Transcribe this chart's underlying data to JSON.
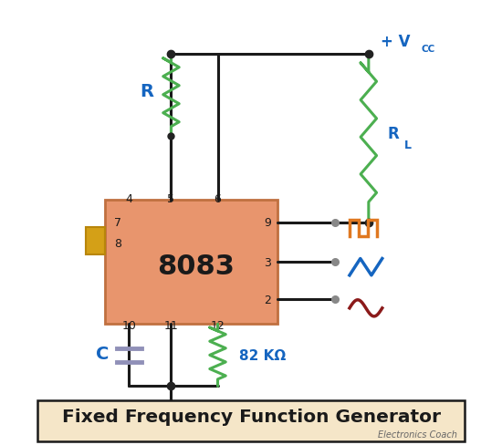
{
  "title": "Fixed Frequency Function Generator",
  "subtitle": "Electronics Coach",
  "ic_label": "8083",
  "bg_color": "#ffffff",
  "title_bg": "#f5e6c8",
  "wire_color": "#1a1a1a",
  "resistor_green": "#4caf50",
  "cap_color": "#9090b8",
  "label_blue": "#1565c0",
  "label_orange": "#e07820",
  "label_darkred": "#8b1a1a",
  "dot_color": "#222222",
  "ic_fill": "#e8956d",
  "ic_border": "#c07040",
  "tab_fill": "#d4a017",
  "tab_border": "#b8860b",
  "gnd_color": "#1a1a1a",
  "vcc_color": "#1565c0"
}
